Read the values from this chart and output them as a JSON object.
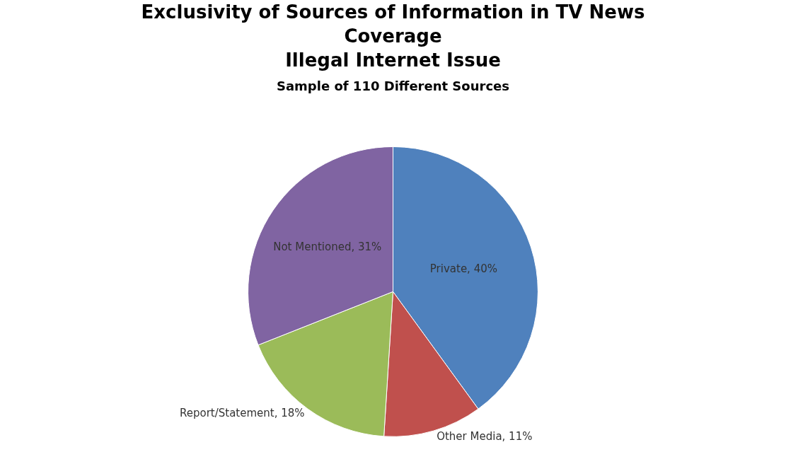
{
  "chart_data": {
    "type": "pie",
    "title": "Exclusivity of Sources of Information in TV News Coverage\nIllegal Internet Issue",
    "subtitle": "Sample of 110 Different Sources",
    "categories": [
      "Private",
      "Other Media",
      "Report/Statement",
      "Not Mentioned"
    ],
    "values": [
      40,
      11,
      18,
      31
    ],
    "colors": [
      "#4f81bd",
      "#c0504d",
      "#9bbb59",
      "#8064a2"
    ],
    "value_labels": [
      "40%",
      "11%",
      "18%",
      "31%"
    ],
    "legend": false
  }
}
